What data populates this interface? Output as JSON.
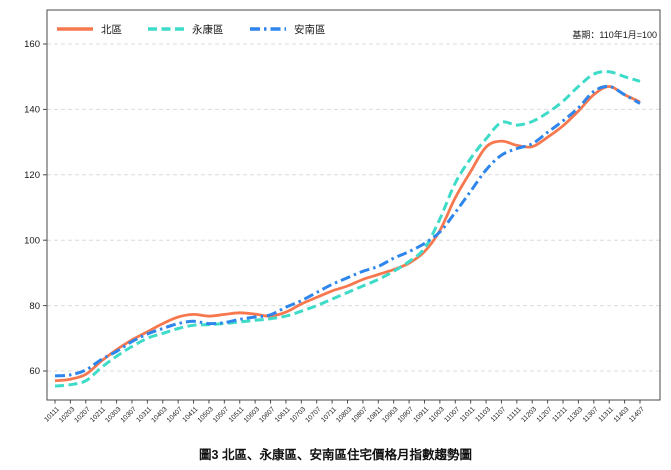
{
  "figure": {
    "annotation": "基期：110年1月=100",
    "caption": "圖3 北區、永康區、安南區住宅價格月指數趨勢圖"
  },
  "colors": {
    "beiqu": "#F7784F",
    "yongkang": "#3EDBC8",
    "annan": "#2E86EC",
    "grid": "#DCDCDC",
    "spine": "#4A4A4A",
    "tick_text": "#1a1a1a"
  },
  "chart_data": {
    "type": "line",
    "title": "圖3 北區、永康區、安南區住宅價格月指數趨勢圖",
    "annotation": "基期：110年1月=100",
    "xlabel": "",
    "ylabel": "",
    "ylim": [
      51,
      170
    ],
    "yticks": [
      60,
      80,
      100,
      120,
      140,
      160
    ],
    "grid": "horizontal-dashed",
    "legend_position": "top-left",
    "x": [
      "10111",
      "10203",
      "10207",
      "10211",
      "10303",
      "10307",
      "10311",
      "10403",
      "10407",
      "10411",
      "10503",
      "10507",
      "10511",
      "10603",
      "10607",
      "10611",
      "10703",
      "10707",
      "10711",
      "10803",
      "10807",
      "10811",
      "10903",
      "10907",
      "10911",
      "11003",
      "11007",
      "11011",
      "11103",
      "11107",
      "11111",
      "11203",
      "11207",
      "11211",
      "11303",
      "11307",
      "11311",
      "11403",
      "11407"
    ],
    "series": [
      {
        "name": "北區",
        "color": "#F7784F",
        "style": "solid",
        "values": [
          57.0,
          57.5,
          59.0,
          63.0,
          66.5,
          69.5,
          72.0,
          74.5,
          76.5,
          77.3,
          76.8,
          77.3,
          77.8,
          77.4,
          76.8,
          78.0,
          80.5,
          82.5,
          84.5,
          86.0,
          88.0,
          89.5,
          91.0,
          93.0,
          96.5,
          103.0,
          113.0,
          121.0,
          128.5,
          130.3,
          129.0,
          128.6,
          131.5,
          135.0,
          139.5,
          144.5,
          147.0,
          144.5,
          142.3
        ]
      },
      {
        "name": "永康區",
        "color": "#3EDBC8",
        "style": "dashed",
        "values": [
          55.4,
          55.8,
          57.0,
          61.0,
          64.5,
          67.5,
          70.0,
          71.5,
          73.0,
          74.0,
          74.2,
          74.5,
          75.0,
          75.5,
          76.0,
          76.8,
          78.3,
          80.0,
          82.0,
          84.0,
          86.0,
          88.0,
          90.5,
          93.5,
          97.5,
          106.5,
          117.5,
          125.0,
          131.0,
          136.0,
          135.2,
          136.3,
          139.0,
          142.5,
          147.0,
          150.8,
          151.5,
          150.0,
          148.6
        ]
      },
      {
        "name": "安南區",
        "color": "#2E86EC",
        "style": "dashdot",
        "values": [
          58.5,
          58.8,
          60.3,
          63.5,
          66.0,
          69.0,
          71.3,
          73.0,
          74.5,
          75.2,
          74.5,
          74.8,
          75.8,
          76.5,
          77.2,
          79.5,
          81.5,
          84.0,
          86.5,
          88.5,
          90.5,
          92.0,
          94.5,
          96.5,
          99.0,
          102.5,
          108.5,
          115.0,
          121.5,
          126.0,
          128.0,
          129.5,
          133.0,
          136.5,
          140.5,
          145.5,
          147.0,
          144.5,
          141.8
        ]
      }
    ]
  }
}
